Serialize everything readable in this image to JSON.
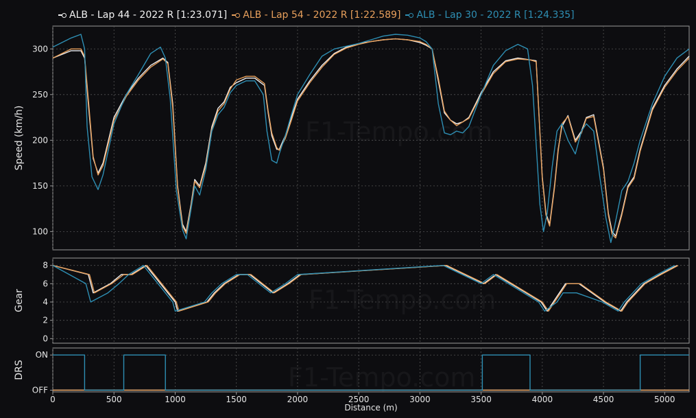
{
  "colors": {
    "background": "#0d0d10",
    "axis": "#9a9a9a",
    "grid": "#555555",
    "text": "#e6e6e6"
  },
  "watermark": "F1-Tempo.com",
  "legend": [
    {
      "label": "ALB - Lap 44 - 2022 R [1:23.071]",
      "color": "#f2f2f2"
    },
    {
      "label": "ALB - Lap 54 - 2022 R [1:22.589]",
      "color": "#e8a05c"
    },
    {
      "label": "ALB - Lap 30 - 2022 R [1:24.335]",
      "color": "#2e8fb4"
    }
  ],
  "chart_data": [
    {
      "type": "line",
      "ylabel": "Speed (km/h)",
      "xlim": [
        0,
        5200
      ],
      "ylim": [
        80,
        325
      ],
      "yticks": [
        100,
        150,
        200,
        250,
        300
      ],
      "grid": true,
      "series": [
        {
          "name": "ALB - Lap 44 - 2022 R [1:23.071]",
          "color": "#f2f2f2",
          "x": [
            0,
            150,
            230,
            260,
            290,
            330,
            370,
            410,
            500,
            600,
            700,
            800,
            900,
            940,
            980,
            1020,
            1060,
            1090,
            1130,
            1160,
            1200,
            1250,
            1300,
            1350,
            1400,
            1450,
            1500,
            1580,
            1650,
            1730,
            1760,
            1790,
            1830,
            1850,
            1900,
            1950,
            2000,
            2100,
            2200,
            2300,
            2400,
            2500,
            2600,
            2700,
            2800,
            2900,
            3000,
            3050,
            3100,
            3150,
            3200,
            3250,
            3300,
            3350,
            3400,
            3500,
            3600,
            3700,
            3800,
            3900,
            3950,
            4000,
            4030,
            4060,
            4100,
            4130,
            4160,
            4210,
            4270,
            4320,
            4360,
            4420,
            4500,
            4540,
            4570,
            4600,
            4650,
            4700,
            4750,
            4800,
            4900,
            5000,
            5100,
            5200
          ],
          "y": [
            290,
            298,
            298,
            290,
            240,
            180,
            164,
            175,
            225,
            250,
            268,
            282,
            290,
            285,
            240,
            150,
            108,
            100,
            130,
            157,
            150,
            175,
            215,
            235,
            242,
            258,
            263,
            268,
            268,
            260,
            230,
            205,
            190,
            190,
            205,
            225,
            245,
            265,
            282,
            295,
            302,
            306,
            308,
            310,
            311,
            310,
            307,
            304,
            300,
            265,
            230,
            222,
            218,
            220,
            225,
            252,
            275,
            287,
            290,
            288,
            287,
            160,
            120,
            108,
            150,
            190,
            215,
            227,
            200,
            210,
            225,
            228,
            170,
            120,
            100,
            95,
            120,
            150,
            160,
            190,
            235,
            260,
            278,
            292
          ]
        },
        {
          "name": "ALB - Lap 54 - 2022 R [1:22.589]",
          "color": "#e8a05c",
          "x": [
            0,
            150,
            230,
            260,
            290,
            330,
            370,
            410,
            500,
            600,
            700,
            800,
            900,
            940,
            980,
            1020,
            1060,
            1090,
            1130,
            1160,
            1200,
            1250,
            1300,
            1350,
            1400,
            1450,
            1500,
            1580,
            1650,
            1730,
            1760,
            1790,
            1830,
            1850,
            1900,
            1950,
            2000,
            2100,
            2200,
            2300,
            2400,
            2500,
            2600,
            2700,
            2800,
            2900,
            3000,
            3050,
            3100,
            3150,
            3200,
            3250,
            3300,
            3350,
            3400,
            3500,
            3600,
            3700,
            3800,
            3900,
            3950,
            4000,
            4030,
            4060,
            4100,
            4130,
            4160,
            4210,
            4270,
            4320,
            4360,
            4420,
            4500,
            4540,
            4570,
            4600,
            4650,
            4700,
            4750,
            4800,
            4900,
            5000,
            5100,
            5200
          ],
          "y": [
            290,
            300,
            300,
            292,
            245,
            182,
            162,
            172,
            222,
            248,
            266,
            280,
            289,
            284,
            236,
            148,
            106,
            98,
            128,
            155,
            148,
            172,
            212,
            232,
            240,
            256,
            266,
            270,
            270,
            262,
            232,
            208,
            192,
            189,
            202,
            222,
            243,
            263,
            280,
            294,
            301,
            305,
            308,
            310,
            311,
            310,
            308,
            305,
            300,
            268,
            232,
            222,
            216,
            220,
            224,
            250,
            273,
            286,
            289,
            288,
            286,
            158,
            118,
            106,
            148,
            188,
            218,
            226,
            198,
            208,
            224,
            226,
            168,
            118,
            97,
            93,
            118,
            148,
            158,
            188,
            233,
            258,
            276,
            290
          ]
        },
        {
          "name": "ALB - Lap 30 - 2022 R [1:24.335]",
          "color": "#2e8fb4",
          "x": [
            0,
            150,
            230,
            260,
            280,
            320,
            370,
            410,
            500,
            600,
            700,
            800,
            880,
            920,
            960,
            1010,
            1060,
            1090,
            1130,
            1160,
            1200,
            1250,
            1300,
            1350,
            1400,
            1450,
            1500,
            1580,
            1650,
            1720,
            1750,
            1790,
            1830,
            1850,
            1900,
            1950,
            2000,
            2100,
            2200,
            2300,
            2400,
            2500,
            2600,
            2700,
            2800,
            2900,
            3000,
            3050,
            3100,
            3150,
            3200,
            3250,
            3300,
            3350,
            3400,
            3500,
            3600,
            3700,
            3800,
            3880,
            3920,
            3980,
            4010,
            4040,
            4080,
            4120,
            4160,
            4210,
            4270,
            4320,
            4360,
            4420,
            4470,
            4520,
            4560,
            4590,
            4650,
            4700,
            4750,
            4800,
            4900,
            5000,
            5100,
            5200
          ],
          "y": [
            302,
            312,
            316,
            300,
            215,
            160,
            146,
            162,
            218,
            250,
            272,
            295,
            302,
            290,
            245,
            145,
            102,
            92,
            125,
            150,
            140,
            168,
            210,
            228,
            236,
            252,
            260,
            265,
            265,
            250,
            210,
            178,
            175,
            185,
            205,
            228,
            250,
            272,
            292,
            300,
            303,
            306,
            310,
            314,
            316,
            315,
            312,
            308,
            300,
            240,
            208,
            206,
            210,
            208,
            215,
            250,
            282,
            298,
            305,
            300,
            260,
            130,
            100,
            120,
            170,
            210,
            218,
            200,
            185,
            210,
            218,
            210,
            160,
            115,
            88,
            105,
            145,
            155,
            175,
            200,
            240,
            270,
            290,
            300
          ]
        }
      ]
    },
    {
      "type": "line",
      "ylabel": "Gear",
      "xlim": [
        0,
        5200
      ],
      "ylim": [
        -0.5,
        8.8
      ],
      "yticks": [
        0,
        2,
        4,
        6,
        8
      ],
      "grid": true,
      "series": [
        {
          "name": "ALB - Lap 44 - 2022 R [1:23.071]",
          "color": "#f2f2f2",
          "x": [
            0,
            290,
            330,
            470,
            560,
            640,
            760,
            1000,
            1020,
            1260,
            1320,
            1400,
            1520,
            1610,
            1800,
            1920,
            2020,
            3210,
            3520,
            3620,
            3990,
            4040,
            4140,
            4190,
            4260,
            4300,
            4510,
            4640,
            4690,
            4830,
            4960,
            5100
          ],
          "y": [
            8,
            7,
            5,
            6,
            7,
            7,
            8,
            4,
            3,
            4,
            5,
            6,
            7,
            7,
            5,
            6,
            7,
            8,
            6,
            7,
            4,
            3,
            5,
            6,
            6,
            6,
            4,
            3,
            4,
            6,
            7,
            8
          ]
        },
        {
          "name": "ALB - Lap 54 - 2022 R [1:22.589]",
          "color": "#e8a05c",
          "x": [
            0,
            300,
            340,
            480,
            580,
            650,
            770,
            1010,
            1030,
            1270,
            1330,
            1410,
            1530,
            1620,
            1810,
            1930,
            2030,
            3220,
            3530,
            3630,
            4000,
            4050,
            4150,
            4200,
            4270,
            4310,
            4520,
            4650,
            4700,
            4840,
            4970,
            5110
          ],
          "y": [
            8,
            7,
            5,
            6,
            7,
            7,
            8,
            4,
            3,
            4,
            5,
            6,
            7,
            7,
            5,
            6,
            7,
            8,
            6,
            7,
            4,
            3,
            5,
            6,
            6,
            6,
            4,
            3,
            4,
            6,
            7,
            8
          ]
        },
        {
          "name": "ALB - Lap 30 - 2022 R [1:24.335]",
          "color": "#2e8fb4",
          "x": [
            0,
            270,
            310,
            450,
            540,
            620,
            740,
            980,
            1000,
            1240,
            1300,
            1380,
            1500,
            1590,
            1780,
            1900,
            2000,
            3190,
            3500,
            3600,
            3970,
            4020,
            4120,
            4170,
            4240,
            4280,
            4490,
            4620,
            4670,
            4810,
            4940,
            5080
          ],
          "y": [
            8,
            6,
            4,
            5,
            6,
            7,
            8,
            4,
            3,
            4,
            5,
            6,
            7,
            7,
            5,
            6,
            7,
            8,
            6,
            7,
            4,
            3,
            4,
            5,
            5,
            5,
            4,
            3,
            4,
            6,
            7,
            8
          ]
        }
      ]
    },
    {
      "type": "line",
      "ylabel": "DRS",
      "xlabel": "Distance (m)",
      "xlim": [
        0,
        5200
      ],
      "ylim": [
        -0.05,
        1.2
      ],
      "xticks": [
        0,
        500,
        1000,
        1500,
        2000,
        2500,
        3000,
        3500,
        4000,
        4500,
        5000
      ],
      "ytick_labels": [
        "OFF",
        "ON"
      ],
      "grid": true,
      "series": [
        {
          "name": "ALB - Lap 44 - 2022 R [1:23.071]",
          "color": "#f2f2f2",
          "x": [
            0,
            5200
          ],
          "y": [
            0,
            0
          ]
        },
        {
          "name": "ALB - Lap 54 - 2022 R [1:22.589]",
          "color": "#e8a05c",
          "x": [
            0,
            5200
          ],
          "y": [
            0,
            0
          ]
        },
        {
          "name": "ALB - Lap 30 - 2022 R [1:24.335]",
          "color": "#2e8fb4",
          "x": [
            0,
            260,
            260,
            580,
            580,
            920,
            920,
            3510,
            3510,
            3900,
            3900,
            4800,
            4800,
            5200
          ],
          "y": [
            1,
            1,
            0,
            0,
            1,
            1,
            0,
            0,
            1,
            1,
            0,
            0,
            1,
            1
          ]
        }
      ]
    }
  ]
}
